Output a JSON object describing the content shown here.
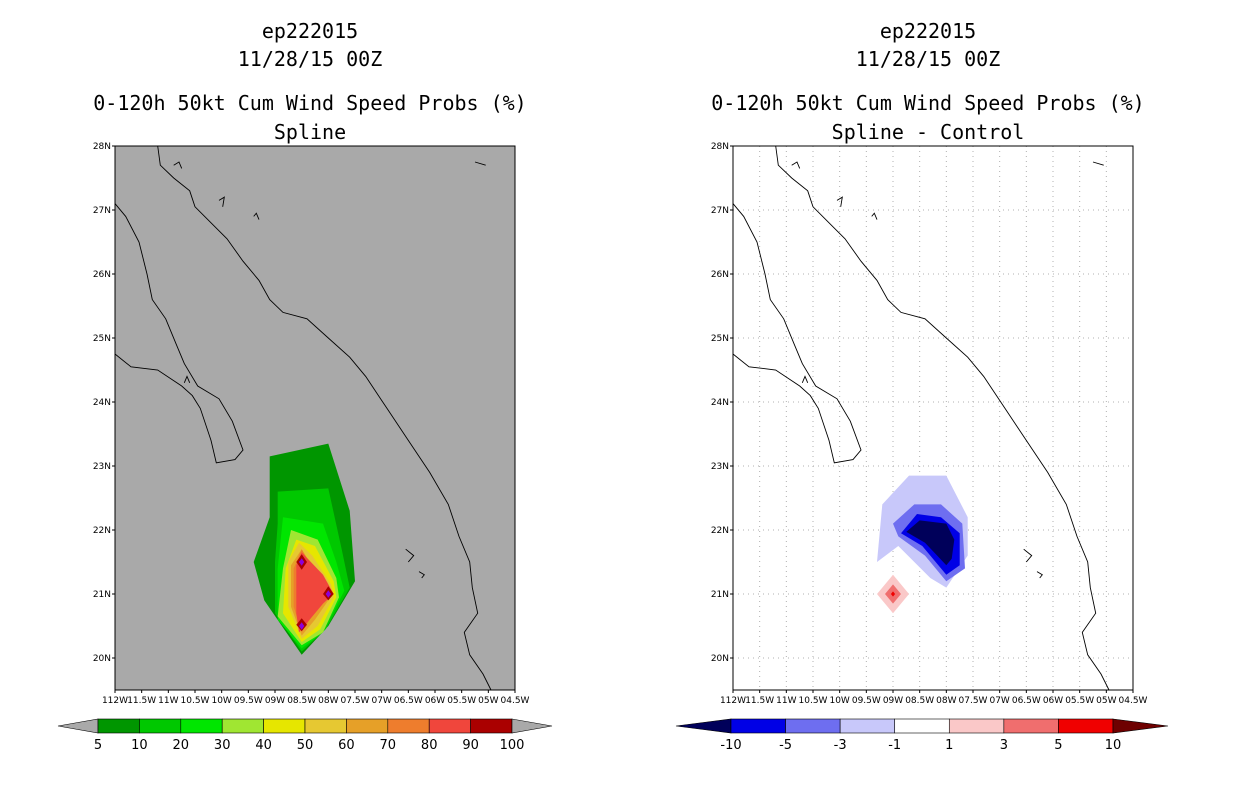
{
  "panels": [
    {
      "id": "left",
      "storm": "ep222015",
      "datetime": "11/28/15 00Z",
      "title": "0-120h 50kt Cum Wind Speed Probs (%)",
      "subtitle": "Spline",
      "background_color": "#a9a9a9"
    },
    {
      "id": "right",
      "storm": "ep222015",
      "datetime": "11/28/15 00Z",
      "title": "0-120h 50kt Cum Wind Speed Probs (%)",
      "subtitle": "Spline - Control",
      "background_color": "#ffffff"
    }
  ],
  "chart_data": [
    {
      "type": "heatmap",
      "title": "0-120h 50kt Cum Wind Speed Probs (%)",
      "subtitle": "Spline",
      "units": "%",
      "xlim": [
        -112,
        -104.5
      ],
      "ylim": [
        19.5,
        28
      ],
      "x_tick_labels": [
        "112W",
        "11.5W",
        "11W",
        "10.5W",
        "10W",
        "09.5W",
        "09W",
        "08.5W",
        "08W",
        "07.5W",
        "07W",
        "06.5W",
        "06W",
        "05.5W",
        "05W",
        "04.5W"
      ],
      "y_tick_labels": [
        "20N",
        "21N",
        "22N",
        "23N",
        "24N",
        "25N",
        "26N",
        "27N",
        "28N"
      ],
      "grid": false,
      "colorbar": {
        "levels": [
          "5",
          "10",
          "20",
          "30",
          "40",
          "50",
          "60",
          "70",
          "80",
          "90",
          "100"
        ],
        "colors": [
          "#009600",
          "#00c800",
          "#00e600",
          "#a0e632",
          "#e6e600",
          "#e6c832",
          "#e6a028",
          "#ee7d2d",
          "#f0463c",
          "#aa0000",
          "#8c00dc",
          "#a9a9a9"
        ],
        "under_color": "#a9a9a9",
        "over_color": "#a9a9a9"
      },
      "contours": [
        {
          "level": 5,
          "color": "#009600",
          "points": [
            [
              -109.1,
              23.15
            ],
            [
              -108.0,
              23.35
            ],
            [
              -107.6,
              22.3
            ],
            [
              -107.5,
              21.2
            ],
            [
              -108.0,
              20.5
            ],
            [
              -108.5,
              20.05
            ],
            [
              -109.2,
              20.9
            ],
            [
              -109.4,
              21.5
            ],
            [
              -109.1,
              22.2
            ]
          ]
        },
        {
          "level": 10,
          "color": "#00c800",
          "points": [
            [
              -108.95,
              22.6
            ],
            [
              -108.0,
              22.65
            ],
            [
              -107.75,
              21.7
            ],
            [
              -107.6,
              21.1
            ],
            [
              -108.05,
              20.45
            ],
            [
              -108.5,
              20.1
            ],
            [
              -109.0,
              20.7
            ],
            [
              -109.0,
              21.5
            ],
            [
              -108.95,
              22.1
            ]
          ]
        },
        {
          "level": 20,
          "color": "#00e600",
          "points": [
            [
              -108.85,
              22.2
            ],
            [
              -108.1,
              22.1
            ],
            [
              -107.85,
              21.5
            ],
            [
              -107.7,
              21.05
            ],
            [
              -108.1,
              20.4
            ],
            [
              -108.5,
              20.15
            ],
            [
              -108.95,
              20.6
            ],
            [
              -108.95,
              21.4
            ]
          ]
        },
        {
          "level": 30,
          "color": "#a0e632",
          "points": [
            [
              -108.7,
              22.0
            ],
            [
              -108.2,
              21.85
            ],
            [
              -107.85,
              21.25
            ],
            [
              -107.8,
              20.95
            ],
            [
              -108.1,
              20.4
            ],
            [
              -108.5,
              20.2
            ],
            [
              -108.95,
              20.65
            ],
            [
              -108.85,
              21.4
            ]
          ]
        },
        {
          "level": 40,
          "color": "#e6e600",
          "points": [
            [
              -108.6,
              21.85
            ],
            [
              -108.25,
              21.75
            ],
            [
              -107.9,
              21.2
            ],
            [
              -107.85,
              20.95
            ],
            [
              -108.15,
              20.45
            ],
            [
              -108.5,
              20.25
            ],
            [
              -108.85,
              20.7
            ],
            [
              -108.8,
              21.4
            ]
          ]
        },
        {
          "level": 50,
          "color": "#e6c832",
          "points": [
            [
              -108.55,
              21.8
            ],
            [
              -108.3,
              21.6
            ],
            [
              -107.95,
              21.15
            ],
            [
              -107.9,
              20.95
            ],
            [
              -108.2,
              20.5
            ],
            [
              -108.5,
              20.3
            ],
            [
              -108.75,
              20.8
            ],
            [
              -108.75,
              21.5
            ]
          ]
        },
        {
          "level": 60,
          "color": "#e6a028",
          "points": [
            [
              -108.5,
              21.7
            ],
            [
              -108.35,
              21.5
            ],
            [
              -108.0,
              21.1
            ],
            [
              -108.0,
              20.9
            ],
            [
              -108.25,
              20.6
            ],
            [
              -108.5,
              20.35
            ],
            [
              -108.7,
              20.8
            ],
            [
              -108.7,
              21.45
            ]
          ]
        },
        {
          "level": 70,
          "color": "#ee7d2d",
          "points": [
            [
              -108.5,
              21.7
            ],
            [
              -108.3,
              21.4
            ],
            [
              -108.0,
              21.1
            ],
            [
              -108.1,
              20.85
            ],
            [
              -108.35,
              20.6
            ],
            [
              -108.5,
              20.4
            ],
            [
              -108.65,
              20.8
            ],
            [
              -108.65,
              21.4
            ]
          ]
        },
        {
          "level": 80,
          "color": "#f0463c",
          "points": [
            [
              -108.5,
              21.65
            ],
            [
              -108.1,
              21.3
            ],
            [
              -107.9,
              21.0
            ],
            [
              -108.1,
              20.85
            ],
            [
              -108.45,
              20.5
            ],
            [
              -108.55,
              20.4
            ],
            [
              -108.6,
              20.7
            ],
            [
              -108.6,
              21.45
            ]
          ]
        },
        {
          "level": 90,
          "color": "#aa0000",
          "points": [
            [
              -108.5,
              21.62
            ],
            [
              -108.4,
              21.5
            ],
            [
              -108.5,
              21.38
            ],
            [
              -108.6,
              21.5
            ]
          ]
        },
        {
          "level": 90,
          "color": "#aa0000",
          "points": [
            [
              -108.0,
              21.12
            ],
            [
              -107.9,
              21.0
            ],
            [
              -108.0,
              20.9
            ],
            [
              -108.1,
              21.0
            ]
          ]
        },
        {
          "level": 90,
          "color": "#aa0000",
          "points": [
            [
              -108.5,
              20.62
            ],
            [
              -108.4,
              20.52
            ],
            [
              -108.5,
              20.42
            ],
            [
              -108.6,
              20.52
            ]
          ]
        },
        {
          "level": 100,
          "color": "#8c00dc",
          "points": [
            [
              -108.5,
              21.56
            ],
            [
              -108.45,
              21.5
            ],
            [
              -108.5,
              21.44
            ],
            [
              -108.55,
              21.5
            ]
          ]
        },
        {
          "level": 100,
          "color": "#8c00dc",
          "points": [
            [
              -108.0,
              21.06
            ],
            [
              -107.95,
              21.0
            ],
            [
              -108.0,
              20.94
            ],
            [
              -108.05,
              21.0
            ]
          ]
        },
        {
          "level": 100,
          "color": "#8c00dc",
          "points": [
            [
              -108.5,
              20.56
            ],
            [
              -108.45,
              20.5
            ],
            [
              -108.5,
              20.44
            ],
            [
              -108.55,
              20.5
            ]
          ]
        }
      ]
    },
    {
      "type": "heatmap",
      "title": "0-120h 50kt Cum Wind Speed Probs (%)",
      "subtitle": "Spline - Control",
      "units": "%",
      "xlim": [
        -112,
        -104.5
      ],
      "ylim": [
        19.5,
        28
      ],
      "x_tick_labels": [
        "112W",
        "11.5W",
        "11W",
        "10.5W",
        "10W",
        "09.5W",
        "09W",
        "08.5W",
        "08W",
        "07.5W",
        "07W",
        "06.5W",
        "06W",
        "05.5W",
        "05W",
        "04.5W"
      ],
      "y_tick_labels": [
        "20N",
        "21N",
        "22N",
        "23N",
        "24N",
        "25N",
        "26N",
        "27N",
        "28N"
      ],
      "grid": true,
      "colorbar": {
        "levels": [
          "-10",
          "-5",
          "-3",
          "-1",
          "1",
          "3",
          "5",
          "10"
        ],
        "colors": [
          "#00005a",
          "#0000e6",
          "#6e6ef0",
          "#c8c8fa",
          "#ffffff",
          "#fac8c8",
          "#f06e6e",
          "#f00000",
          "#6e0000"
        ],
        "under_color": "#00005a",
        "over_color": "#6e0000"
      },
      "contours": [
        {
          "level": -1,
          "color": "#c8c8fa",
          "points": [
            [
              -108.7,
              22.85
            ],
            [
              -108.0,
              22.85
            ],
            [
              -107.6,
              22.2
            ],
            [
              -107.6,
              21.6
            ],
            [
              -108.0,
              21.1
            ],
            [
              -108.3,
              21.25
            ],
            [
              -108.9,
              21.75
            ],
            [
              -109.3,
              21.5
            ],
            [
              -109.2,
              22.4
            ]
          ]
        },
        {
          "level": -3,
          "color": "#6e6ef0",
          "points": [
            [
              -108.6,
              22.4
            ],
            [
              -108.1,
              22.4
            ],
            [
              -107.7,
              22.1
            ],
            [
              -107.65,
              21.4
            ],
            [
              -108.0,
              21.2
            ],
            [
              -108.4,
              21.6
            ],
            [
              -108.9,
              21.9
            ],
            [
              -109.0,
              22.1
            ]
          ]
        },
        {
          "level": -5,
          "color": "#0000e6",
          "points": [
            [
              -108.55,
              22.25
            ],
            [
              -108.1,
              22.2
            ],
            [
              -107.75,
              21.95
            ],
            [
              -107.75,
              21.45
            ],
            [
              -108.0,
              21.3
            ],
            [
              -108.45,
              21.75
            ],
            [
              -108.85,
              21.95
            ]
          ]
        },
        {
          "level": -10,
          "color": "#00005a",
          "points": [
            [
              -108.5,
              22.15
            ],
            [
              -108.0,
              22.1
            ],
            [
              -107.85,
              21.85
            ],
            [
              -107.9,
              21.55
            ],
            [
              -108.0,
              21.45
            ],
            [
              -108.4,
              21.8
            ],
            [
              -108.75,
              21.97
            ]
          ]
        },
        {
          "level": 1,
          "color": "#fac8c8",
          "points": [
            [
              -109.0,
              21.3
            ],
            [
              -108.7,
              21.0
            ],
            [
              -109.0,
              20.7
            ],
            [
              -109.3,
              21.0
            ]
          ]
        },
        {
          "level": 3,
          "color": "#f06e6e",
          "points": [
            [
              -109.0,
              21.15
            ],
            [
              -108.85,
              21.0
            ],
            [
              -109.0,
              20.85
            ],
            [
              -109.15,
              21.0
            ]
          ]
        },
        {
          "level": 5,
          "color": "#f00000",
          "points": [
            [
              -109.0,
              21.04
            ],
            [
              -108.96,
              21.0
            ],
            [
              -109.0,
              20.96
            ],
            [
              -109.04,
              21.0
            ]
          ]
        }
      ]
    }
  ]
}
